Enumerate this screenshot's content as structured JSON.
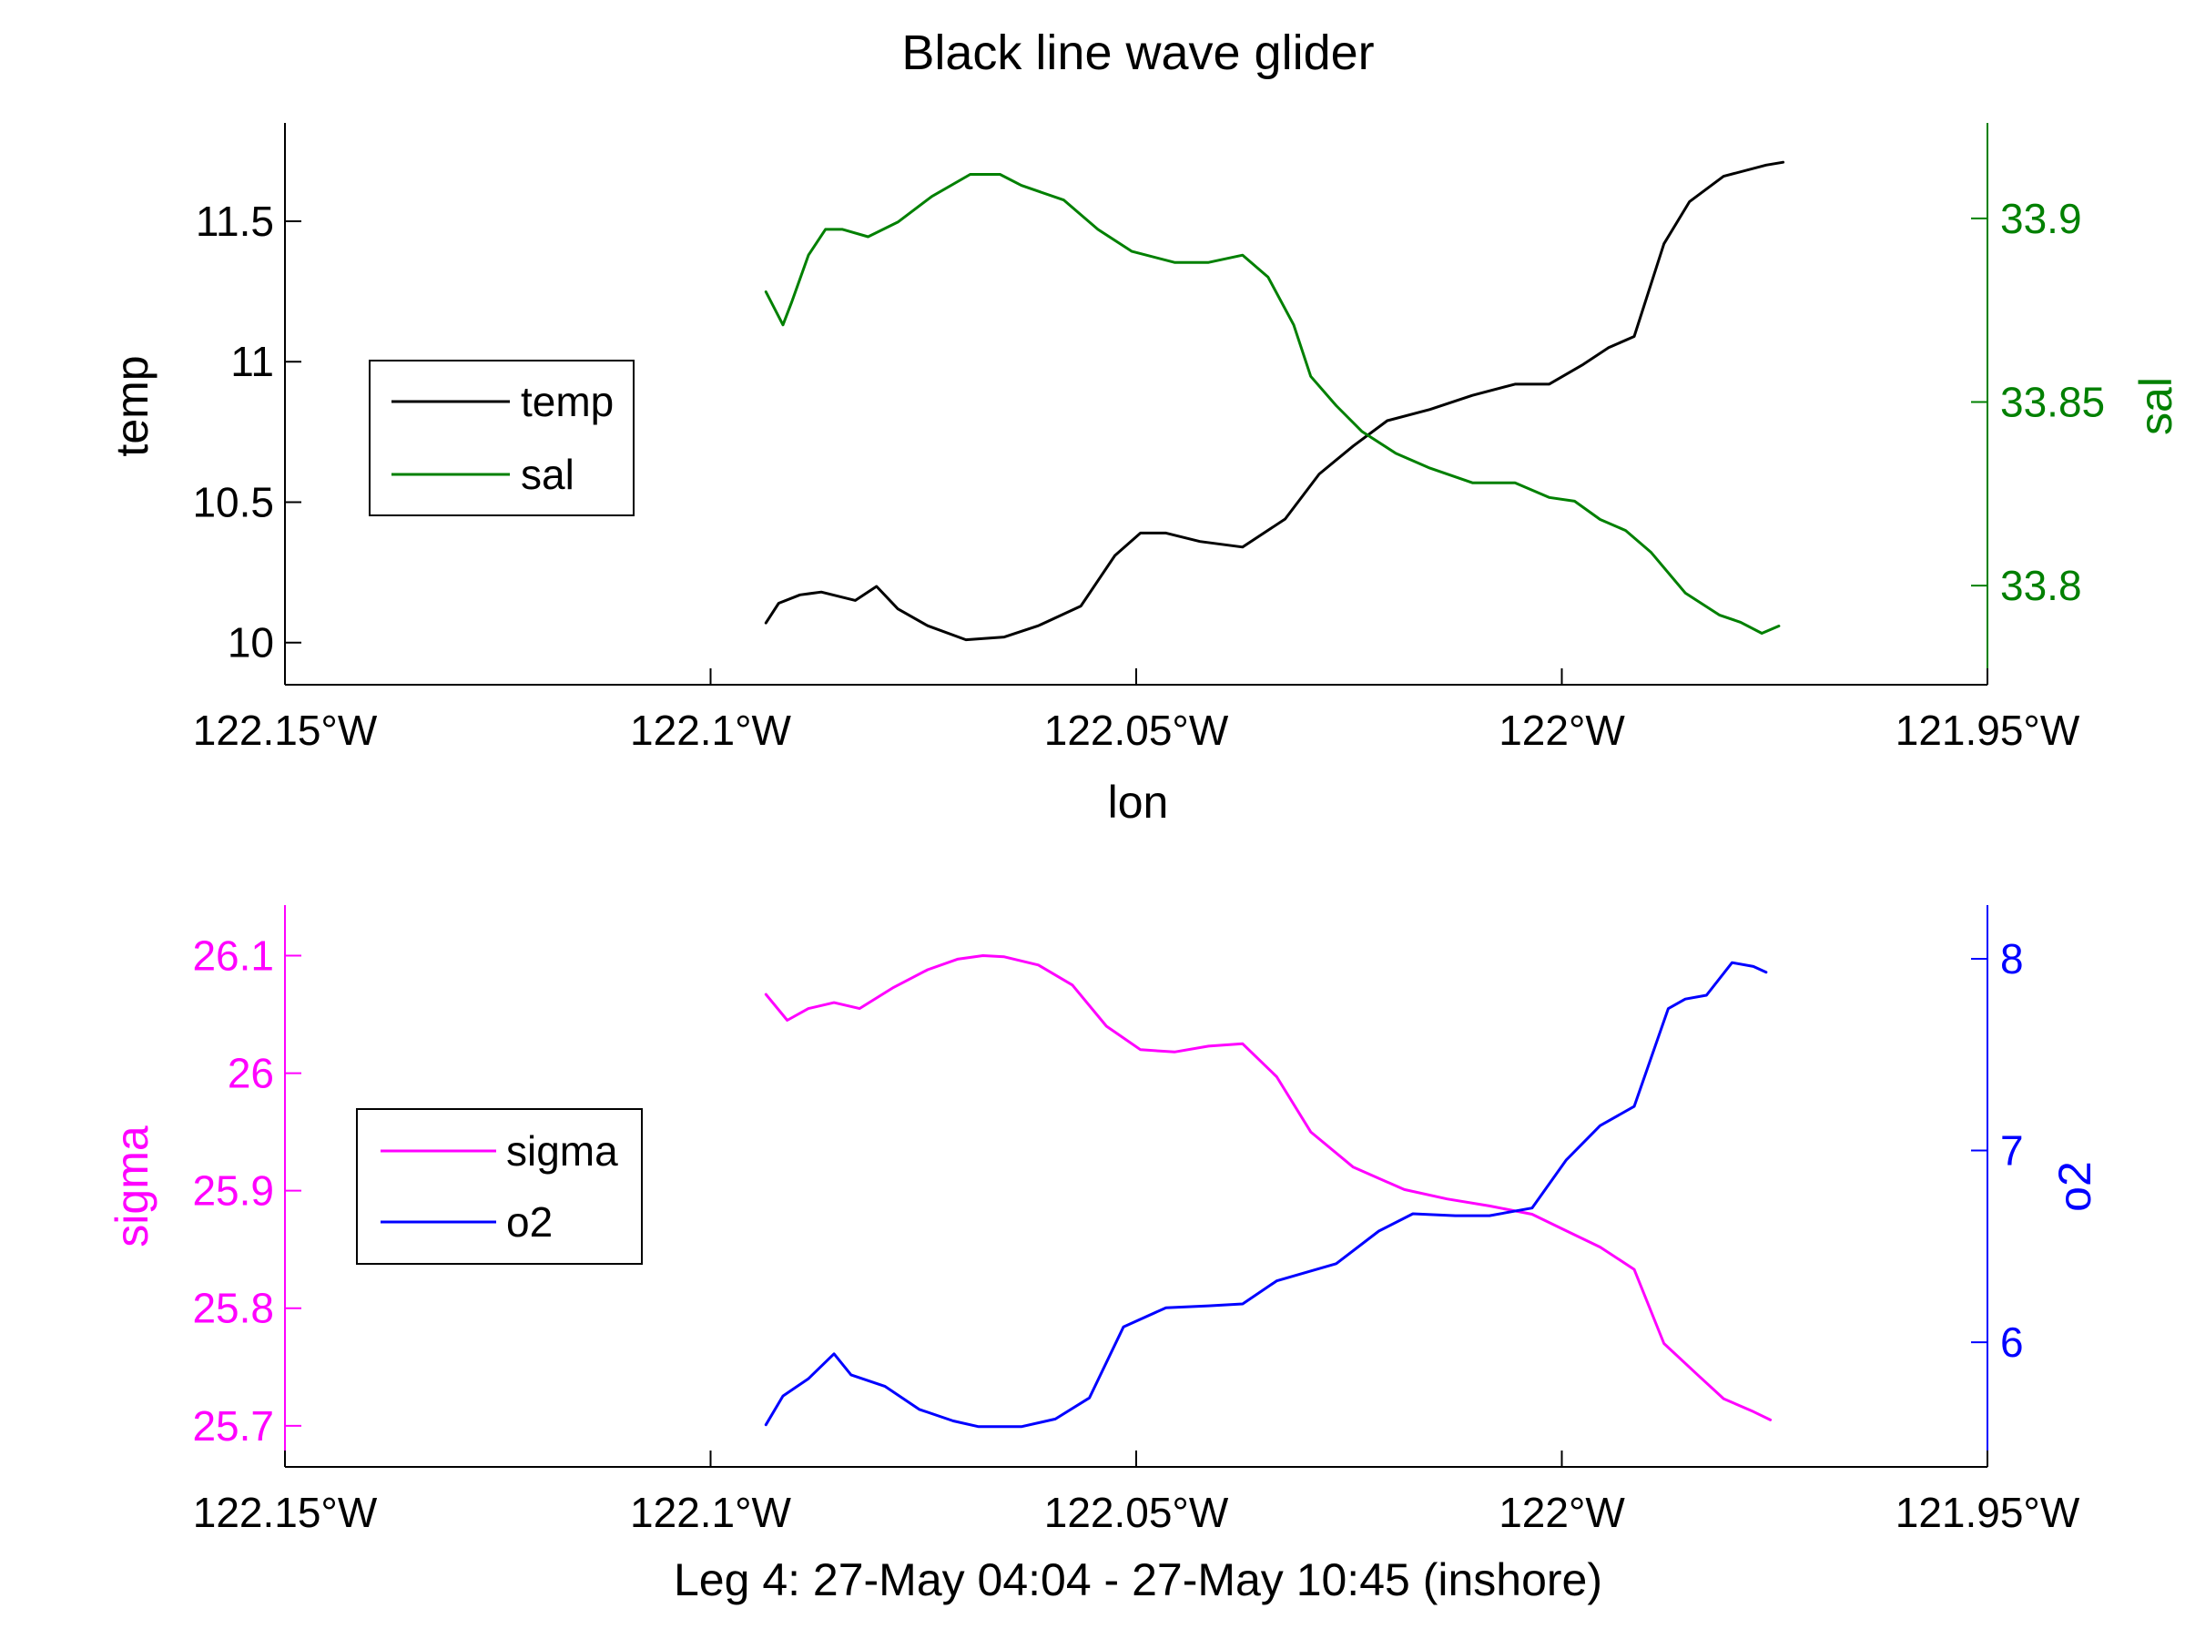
{
  "figure": {
    "title": "Black line wave glider",
    "top_xlabel": "lon",
    "bottom_xlabel": "Leg 4: 27-May 04:04 - 27-May 10:45 (inshore)"
  },
  "colors": {
    "temp": "#000000",
    "sal": "#008000",
    "sigma": "#ff00ff",
    "o2": "#0000ff",
    "axis": "#000000"
  },
  "chart_data": [
    {
      "type": "line",
      "title": "Black line wave glider",
      "xlabel": "lon",
      "xlim": [
        -122.15,
        -121.95
      ],
      "xticks": [
        -122.15,
        -122.1,
        -122.05,
        -122.0,
        -121.95
      ],
      "xtick_labels": [
        "122.15°W",
        "122.1°W",
        "122.05°W",
        "122°W",
        "121.95°W"
      ],
      "left_axis": {
        "label": "temp",
        "ylim": [
          9.85,
          11.85
        ],
        "ticks": [
          10,
          10.5,
          11,
          11.5
        ],
        "tick_labels": [
          "10",
          "10.5",
          "11",
          "11.5"
        ]
      },
      "right_axis": {
        "label": "sal",
        "ylim": [
          33.773,
          33.926
        ],
        "ticks": [
          33.8,
          33.85,
          33.9
        ],
        "tick_labels": [
          "33.8",
          "33.85",
          "33.9"
        ]
      },
      "legend": {
        "position": "left",
        "entries": [
          "temp",
          "sal"
        ]
      },
      "grid": false,
      "series": [
        {
          "name": "temp",
          "axis": "left",
          "x": [
            -122.0935,
            -122.092,
            -122.0895,
            -122.087,
            -122.083,
            -122.0805,
            -122.078,
            -122.0745,
            -122.07,
            -122.0655,
            -122.0615,
            -122.0565,
            -122.0525,
            -122.0495,
            -122.0465,
            -122.0425,
            -122.0375,
            -122.0325,
            -122.0285,
            -122.0245,
            -122.0205,
            -122.0155,
            -122.0105,
            -122.0055,
            -122.0015,
            -121.9975,
            -121.9945,
            -121.9915,
            -121.988,
            -121.985,
            -121.981,
            -121.976,
            -121.974
          ],
          "y": [
            10.07,
            10.14,
            10.17,
            10.18,
            10.15,
            10.2,
            10.12,
            10.06,
            10.01,
            10.02,
            10.06,
            10.13,
            10.31,
            10.39,
            10.39,
            10.36,
            10.34,
            10.44,
            10.6,
            10.7,
            10.79,
            10.83,
            10.88,
            10.92,
            10.92,
            10.99,
            11.05,
            11.09,
            11.42,
            11.57,
            11.66,
            11.7,
            11.71
          ]
        },
        {
          "name": "sal",
          "axis": "right",
          "x": [
            -122.0935,
            -122.0915,
            -122.0905,
            -122.0885,
            -122.0865,
            -122.0845,
            -122.0815,
            -122.078,
            -122.074,
            -122.0695,
            -122.066,
            -122.0635,
            -122.0585,
            -122.0545,
            -122.0505,
            -122.0455,
            -122.0415,
            -122.0375,
            -122.0345,
            -122.0315,
            -122.0295,
            -122.0265,
            -122.0235,
            -122.0195,
            -122.0155,
            -122.0105,
            -122.0055,
            -122.0015,
            -121.9985,
            -121.9955,
            -121.9925,
            -121.9895,
            -121.9855,
            -121.9815,
            -121.979,
            -121.9765,
            -121.9745
          ],
          "y": [
            33.88,
            33.871,
            33.877,
            33.89,
            33.897,
            33.897,
            33.895,
            33.899,
            33.906,
            33.912,
            33.912,
            33.909,
            33.905,
            33.897,
            33.891,
            33.888,
            33.888,
            33.89,
            33.884,
            33.871,
            33.857,
            33.849,
            33.842,
            33.836,
            33.832,
            33.828,
            33.828,
            33.824,
            33.823,
            33.818,
            33.815,
            33.809,
            33.798,
            33.792,
            33.79,
            33.787,
            33.789
          ]
        }
      ]
    },
    {
      "type": "line",
      "xlabel": "Leg 4: 27-May 04:04 - 27-May 10:45 (inshore)",
      "xlim": [
        -122.15,
        -121.95
      ],
      "xticks": [
        -122.15,
        -122.1,
        -122.05,
        -122.0,
        -121.95
      ],
      "xtick_labels": [
        "122.15°W",
        "122.1°W",
        "122.05°W",
        "122°W",
        "121.95°W"
      ],
      "left_axis": {
        "label": "sigma",
        "ylim": [
          25.665,
          26.143
        ],
        "ticks": [
          25.7,
          25.8,
          25.9,
          26,
          26.1
        ],
        "tick_labels": [
          "25.7",
          "25.8",
          "25.9",
          "26",
          "26.1"
        ]
      },
      "right_axis": {
        "label": "o2",
        "ylim": [
          5.35,
          8.28
        ],
        "ticks": [
          6,
          7,
          8
        ],
        "tick_labels": [
          "6",
          "7",
          "8"
        ]
      },
      "legend": {
        "position": "left",
        "entries": [
          "sigma",
          "o2"
        ]
      },
      "grid": false,
      "series": [
        {
          "name": "sigma",
          "axis": "left",
          "x": [
            -122.0935,
            -122.091,
            -122.0885,
            -122.0855,
            -122.0825,
            -122.0785,
            -122.0745,
            -122.071,
            -122.068,
            -122.0655,
            -122.0615,
            -122.0575,
            -122.0535,
            -122.0495,
            -122.0455,
            -122.0415,
            -122.0375,
            -122.0335,
            -122.0295,
            -122.0245,
            -122.0185,
            -122.0135,
            -122.0085,
            -122.0035,
            -121.9995,
            -121.9955,
            -121.9915,
            -121.988,
            -121.984,
            -121.981,
            -121.9775,
            -121.9755
          ],
          "y": [
            26.067,
            26.045,
            26.055,
            26.06,
            26.055,
            26.073,
            26.088,
            26.097,
            26.1,
            26.099,
            26.092,
            26.075,
            26.04,
            26.02,
            26.018,
            26.023,
            26.025,
            25.997,
            25.95,
            25.92,
            25.901,
            25.893,
            25.887,
            25.88,
            25.866,
            25.852,
            25.833,
            25.77,
            25.743,
            25.723,
            25.712,
            25.705
          ]
        },
        {
          "name": "o2",
          "axis": "right",
          "x": [
            -122.0935,
            -122.0915,
            -122.0885,
            -122.0855,
            -122.0835,
            -122.0795,
            -122.0755,
            -122.0715,
            -122.0685,
            -122.0635,
            -122.0595,
            -122.0555,
            -122.0515,
            -122.0465,
            -122.0415,
            -122.0375,
            -122.0335,
            -122.0265,
            -122.0215,
            -122.0175,
            -122.0125,
            -122.0085,
            -122.0035,
            -121.9995,
            -121.9955,
            -121.9915,
            -121.9875,
            -121.9855,
            -121.983,
            -121.98,
            -121.9775,
            -121.976
          ],
          "y": [
            5.57,
            5.72,
            5.81,
            5.94,
            5.83,
            5.77,
            5.65,
            5.59,
            5.56,
            5.56,
            5.6,
            5.71,
            6.08,
            6.18,
            6.19,
            6.2,
            6.32,
            6.41,
            6.58,
            6.67,
            6.66,
            6.66,
            6.7,
            6.95,
            7.13,
            7.23,
            7.74,
            7.79,
            7.81,
            7.98,
            7.96,
            7.93
          ]
        }
      ]
    }
  ]
}
